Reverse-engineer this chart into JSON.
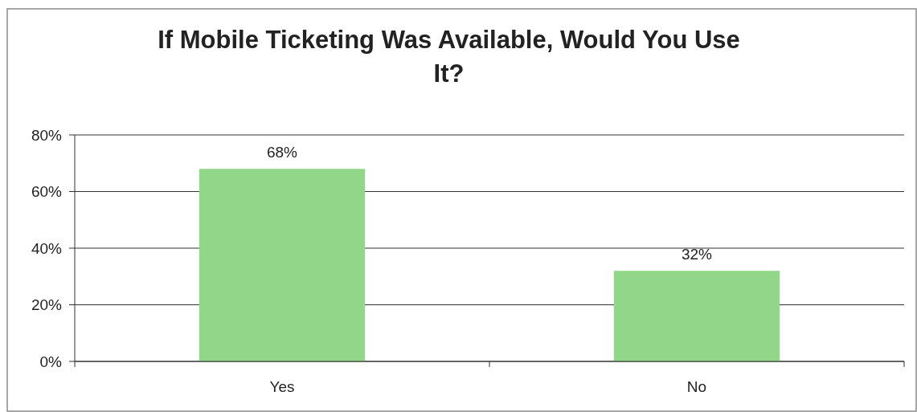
{
  "chart_data": {
    "type": "bar",
    "title": "If Mobile Ticketing Was Available, Would You Use It?",
    "categories": [
      "Yes",
      "No"
    ],
    "values": [
      68,
      32
    ],
    "color": "#92d68a",
    "ylim": [
      0,
      80
    ],
    "yticks": [
      {
        "value": 0,
        "label": "0%"
      },
      {
        "value": 20,
        "label": "20%"
      },
      {
        "value": 40,
        "label": "40%"
      },
      {
        "value": 60,
        "label": "60%"
      },
      {
        "value": 80,
        "label": "80%"
      }
    ],
    "value_labels": [
      "68%",
      "32%"
    ],
    "grid": "y"
  }
}
